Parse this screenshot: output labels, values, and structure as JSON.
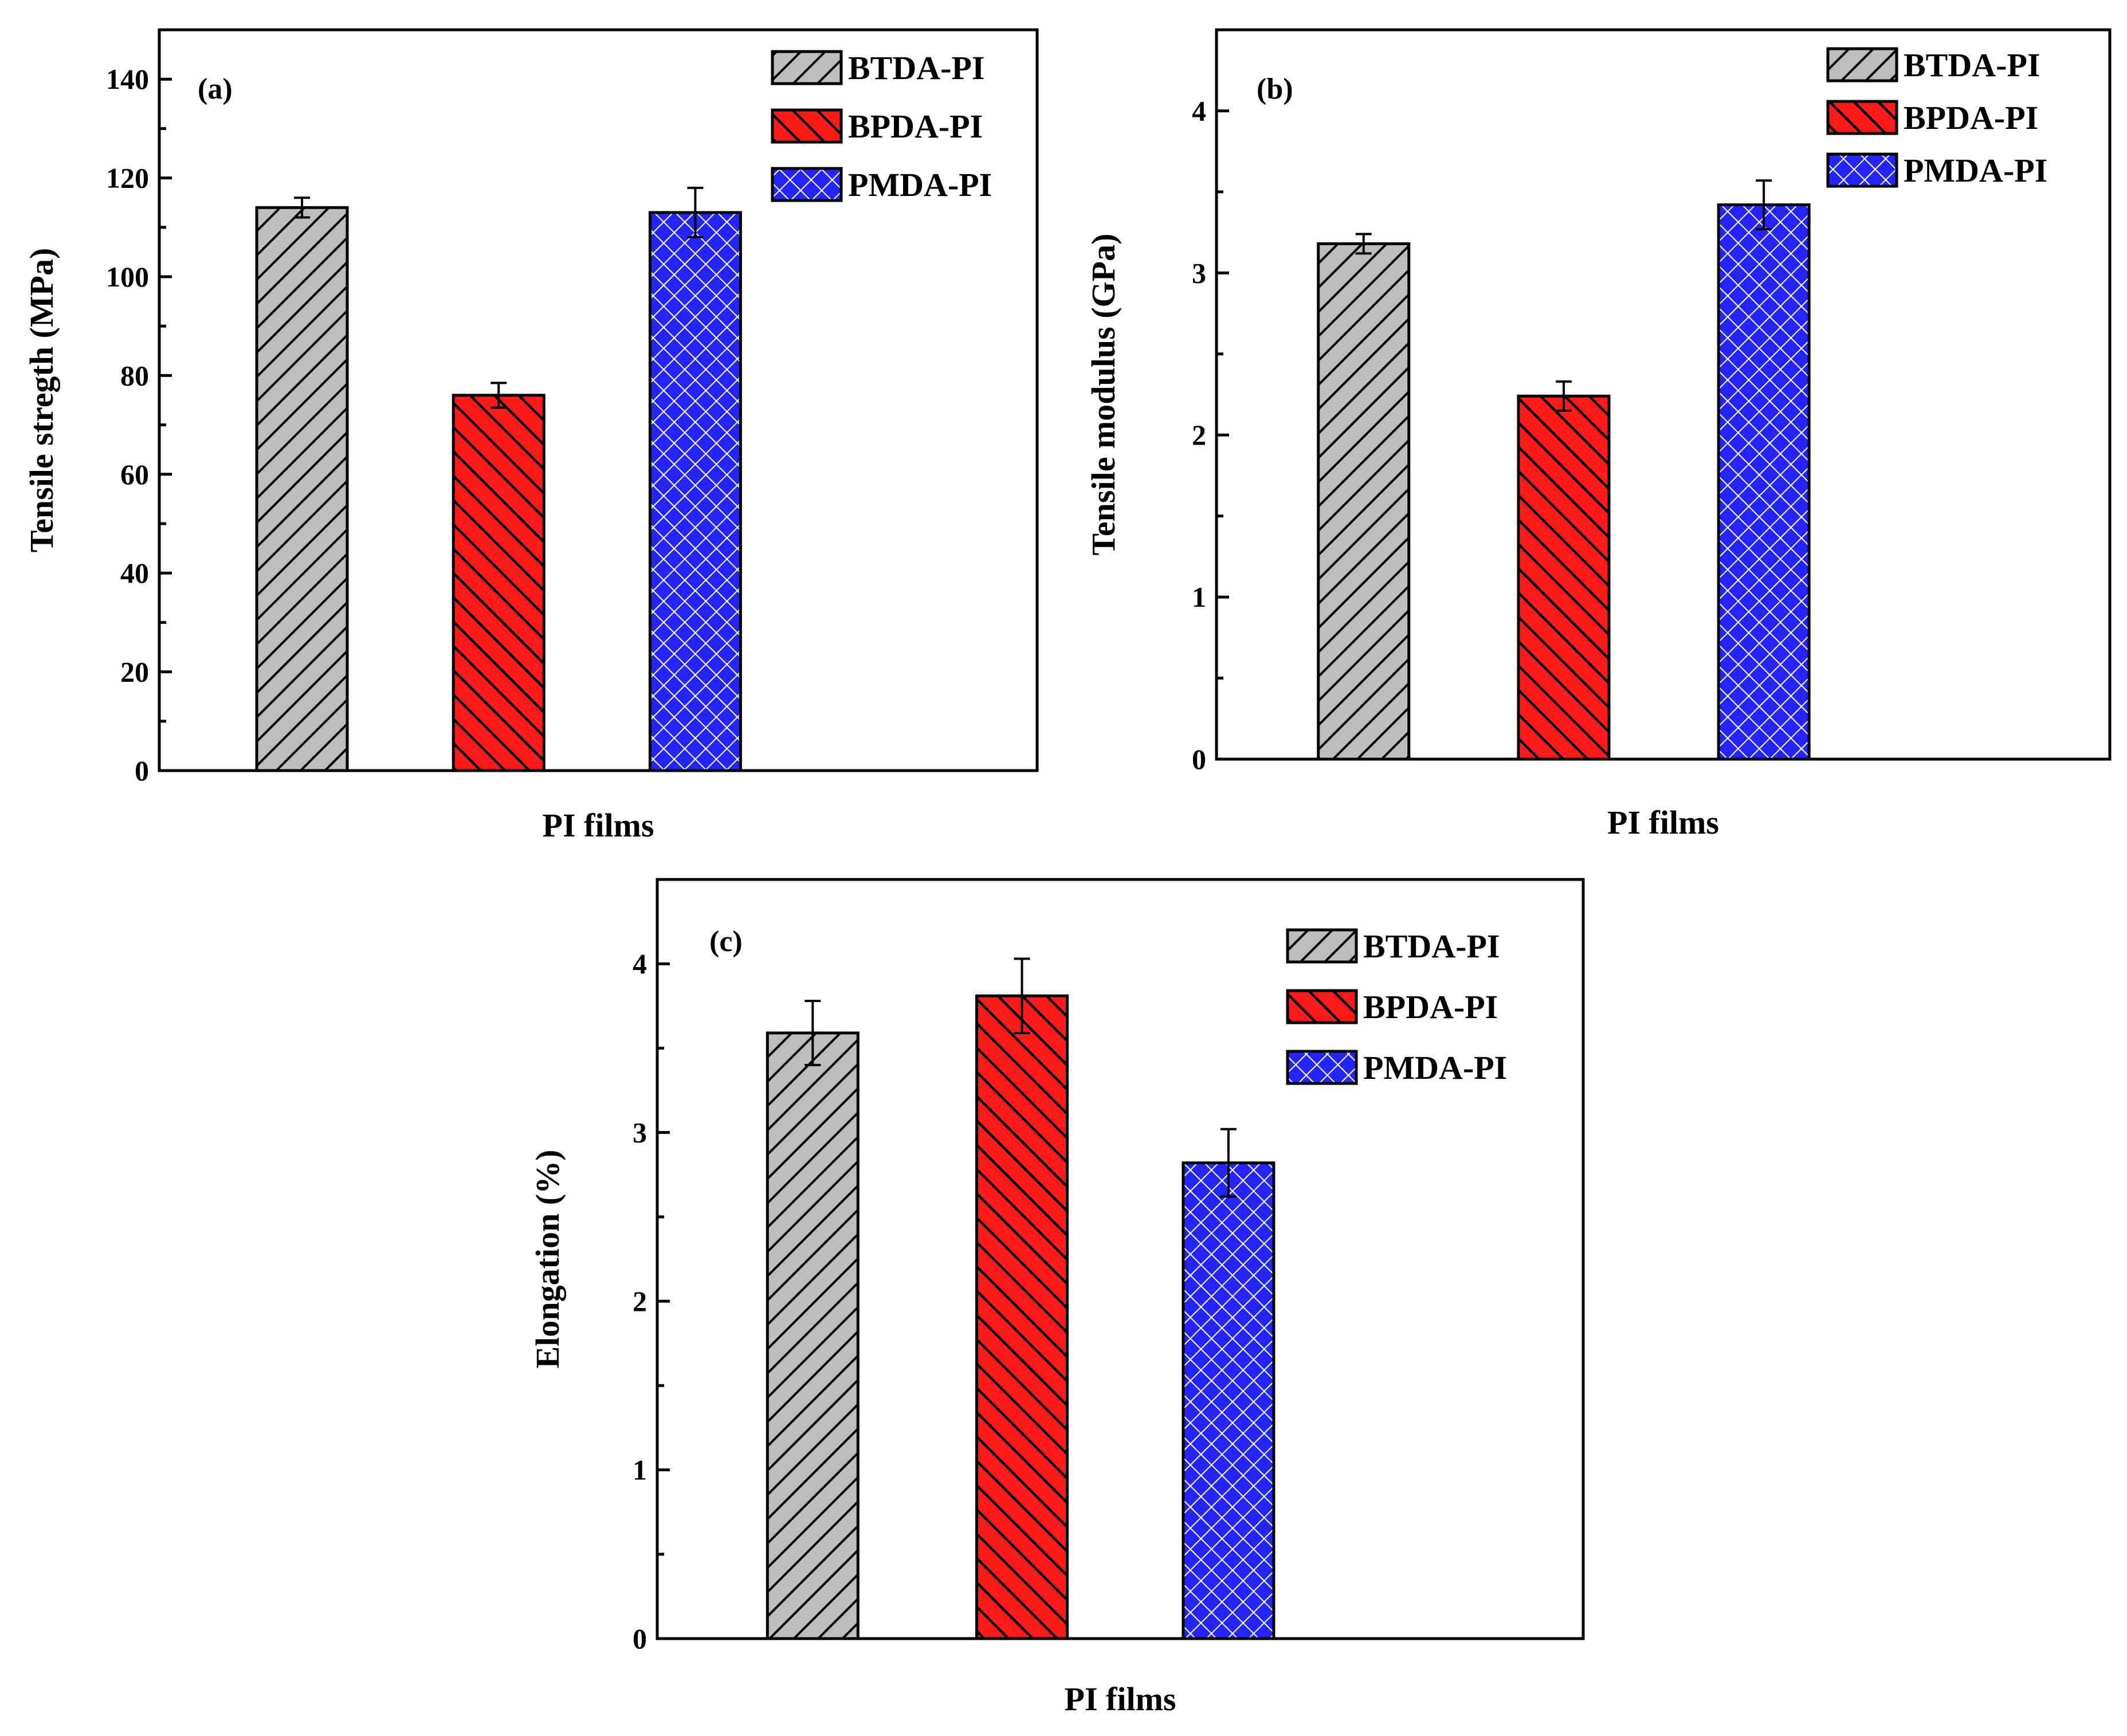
{
  "colors": {
    "BTDA-PI": "#bdbdbd",
    "BPDA-PI": "#ff1a1a",
    "PMDA-PI": "#2424ff"
  },
  "hatch": {
    "BTDA-PI": "forward-diagonal",
    "BPDA-PI": "backward-diagonal",
    "PMDA-PI": "crosshatch"
  },
  "chart_data": [
    {
      "panel": "(a)",
      "type": "bar",
      "categories": [
        "BTDA-PI",
        "BPDA-PI",
        "PMDA-PI"
      ],
      "values": [
        114,
        76,
        113
      ],
      "errors": [
        2,
        2.5,
        5
      ],
      "xlabel": "PI films",
      "ylabel": "Tensile stregth (MPa)",
      "ylim": [
        0,
        150
      ],
      "yticks": [
        0,
        20,
        40,
        60,
        80,
        100,
        120,
        140
      ],
      "legend": [
        "BTDA-PI",
        "BPDA-PI",
        "PMDA-PI"
      ],
      "legend_position": "top-right"
    },
    {
      "panel": "(b)",
      "type": "bar",
      "categories": [
        "BTDA-PI",
        "BPDA-PI",
        "PMDA-PI"
      ],
      "values": [
        3.18,
        2.24,
        3.42
      ],
      "errors": [
        0.06,
        0.09,
        0.15
      ],
      "xlabel": "PI films",
      "ylabel": "Tensile modulus (GPa)",
      "ylim": [
        0,
        4.5
      ],
      "yticks": [
        0,
        1,
        2,
        3,
        4
      ],
      "legend": [
        "BTDA-PI",
        "BPDA-PI",
        "PMDA-PI"
      ],
      "legend_position": "top-right"
    },
    {
      "panel": "(c)",
      "type": "bar",
      "categories": [
        "BTDA-PI",
        "BPDA-PI",
        "PMDA-PI"
      ],
      "values": [
        3.59,
        3.81,
        2.82
      ],
      "errors": [
        0.19,
        0.22,
        0.2
      ],
      "xlabel": "PI films",
      "ylabel": "Elongation (%)",
      "ylim": [
        0,
        4.5
      ],
      "yticks": [
        0,
        1,
        2,
        3,
        4
      ],
      "legend": [
        "BTDA-PI",
        "BPDA-PI",
        "PMDA-PI"
      ],
      "legend_position": "top-right"
    }
  ]
}
